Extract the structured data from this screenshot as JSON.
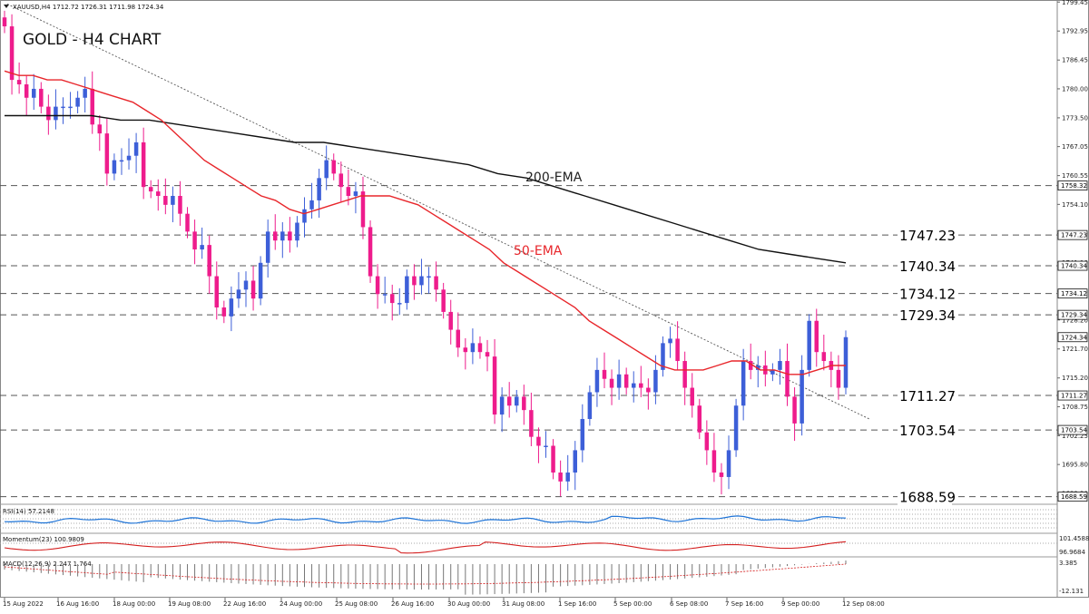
{
  "header": {
    "symbol_info": "XAUUSD,H4  1712.72 1726.31 1711.98 1724.34",
    "chart_title": "GOLD - H4 CHART"
  },
  "colors": {
    "bull": "#3d5fd8",
    "bear": "#ee1c8c",
    "ema50": "#e8262b",
    "ema200": "#111111",
    "rsi": "#1e73d6",
    "momentum": "#d42020",
    "macd_signal": "#d42020",
    "level_line": "#555555"
  },
  "labels": {
    "ema200": "200-EMA",
    "ema50": "50-EMA",
    "rsi": "RSI(14) 57.2148",
    "momentum": "Momentum(23) 100.9809",
    "macd": "MACD(12,26,9) 2.247 1.764"
  },
  "levels": [
    "1747.23",
    "1740.34",
    "1734.12",
    "1729.34",
    "1711.27",
    "1703.54",
    "1688.59"
  ],
  "chart_data": {
    "type": "candlestick",
    "title": "GOLD - H4 CHART",
    "ylim": [
      1687.5,
      1799.5
    ],
    "y_ticks": [
      "1799.45",
      "1792.95",
      "1786.45",
      "1780.00",
      "1773.50",
      "1767.05",
      "1760.55",
      "1754.10",
      "1747.60",
      "1741.10",
      "1734.65",
      "1728.20",
      "1721.70",
      "1715.20",
      "1708.75",
      "1702.25",
      "1695.80",
      "1689.30"
    ],
    "right_axis_tags": [
      "1758.32",
      "1747.23",
      "1740.34",
      "1734.12",
      "1729.34",
      "1724.34",
      "1711.27",
      "1703.54",
      "1688.59"
    ],
    "x_ticks": [
      "15 Aug 2022",
      "16 Aug 16:00",
      "18 Aug 00:00",
      "19 Aug 08:00",
      "22 Aug 16:00",
      "24 Aug 00:00",
      "25 Aug 08:00",
      "26 Aug 16:00",
      "30 Aug 00:00",
      "31 Aug 08:00",
      "1 Sep 16:00",
      "5 Sep 00:00",
      "6 Sep 08:00",
      "7 Sep 16:00",
      "9 Sep 00:00",
      "12 Sep 08:00"
    ],
    "close": [
      1794,
      1782,
      1781,
      1778,
      1780,
      1776,
      1773,
      1776,
      1776,
      1776,
      1778,
      1780,
      1772,
      1770,
      1761,
      1764,
      1764,
      1765,
      1768,
      1758,
      1757,
      1756,
      1754,
      1756,
      1752,
      1748,
      1744,
      1745,
      1738,
      1731,
      1729,
      1733,
      1735,
      1737,
      1733,
      1741,
      1748,
      1746,
      1748,
      1746,
      1750,
      1753,
      1755,
      1760,
      1764,
      1761,
      1758,
      1756,
      1757,
      1749,
      1738,
      1734,
      1734,
      1732,
      1732,
      1738,
      1736,
      1738,
      1738,
      1735,
      1730,
      1726,
      1722,
      1721,
      1723,
      1721,
      1720,
      1707,
      1711,
      1709,
      1711,
      1708,
      1702,
      1700,
      1700,
      1694,
      1692,
      1694,
      1699,
      1706,
      1712,
      1717,
      1715,
      1713,
      1716,
      1713,
      1714,
      1713,
      1712,
      1717,
      1723,
      1724,
      1719,
      1713,
      1709,
      1703,
      1699,
      1694,
      1693,
      1699,
      1709,
      1719,
      1717,
      1718,
      1716,
      1717,
      1719,
      1711,
      1705,
      1717,
      1728,
      1721,
      1719,
      1717,
      1713,
      1724.34
    ],
    "ema50": [
      1784,
      1783,
      1783,
      1782,
      1782,
      1781,
      1780,
      1779,
      1778,
      1777,
      1775,
      1773,
      1770,
      1767,
      1764,
      1762,
      1760,
      1758,
      1756,
      1755,
      1753,
      1752,
      1753,
      1754,
      1755,
      1756,
      1756,
      1756,
      1755,
      1754,
      1752,
      1750,
      1748,
      1746,
      1744,
      1741,
      1739,
      1737,
      1735,
      1733,
      1731,
      1728,
      1726,
      1724,
      1722,
      1720,
      1718,
      1717,
      1717,
      1717,
      1718,
      1719,
      1719,
      1717,
      1717,
      1716,
      1716,
      1717,
      1718,
      1718
    ],
    "ema200": [
      1774,
      1774,
      1774,
      1774,
      1773,
      1773,
      1772,
      1771,
      1770,
      1769,
      1768,
      1768,
      1767,
      1766,
      1765,
      1764,
      1763,
      1761,
      1760,
      1758,
      1756,
      1754,
      1752,
      1750,
      1748,
      1746,
      1744,
      1743,
      1742,
      1741
    ],
    "rsi": {
      "name": "RSI(14)",
      "value": 57.2148
    },
    "momentum": {
      "name": "Momentum(23)",
      "value": 100.9809,
      "ticks": [
        "101.4588",
        "96.9684"
      ]
    },
    "macd": {
      "name": "MACD(12,26,9)",
      "main": 2.247,
      "signal": 1.764,
      "ticks": [
        "3.385",
        "-12.131"
      ]
    }
  }
}
